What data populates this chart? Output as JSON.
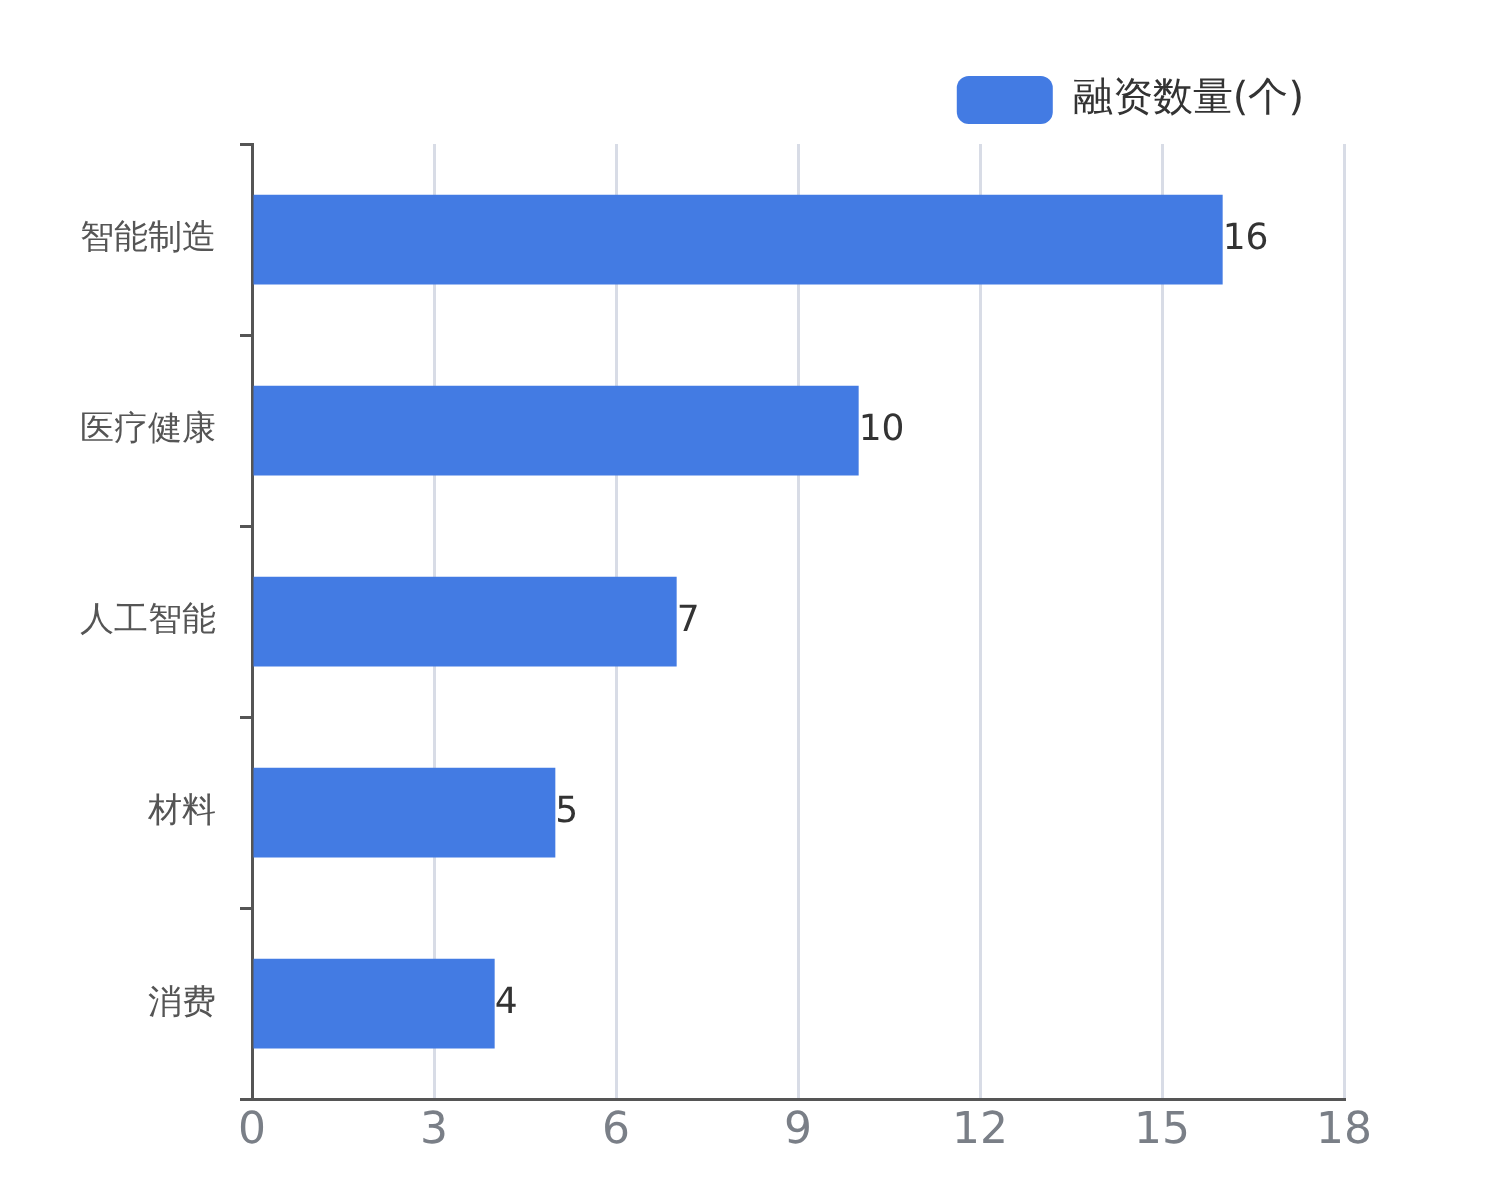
{
  "chart_data": {
    "type": "bar",
    "orientation": "horizontal",
    "categories": [
      "智能制造",
      "医疗健康",
      "人工智能",
      "材料",
      "消费"
    ],
    "series": [
      {
        "name": "融资数量(个)",
        "color": "#437be3",
        "values": [
          16,
          10,
          7,
          5,
          4
        ]
      }
    ],
    "xlim": [
      0,
      18
    ],
    "xticks": [
      0,
      3,
      6,
      9,
      12,
      15,
      18
    ],
    "grid": "x",
    "legend": "top right",
    "data_labels": true
  }
}
